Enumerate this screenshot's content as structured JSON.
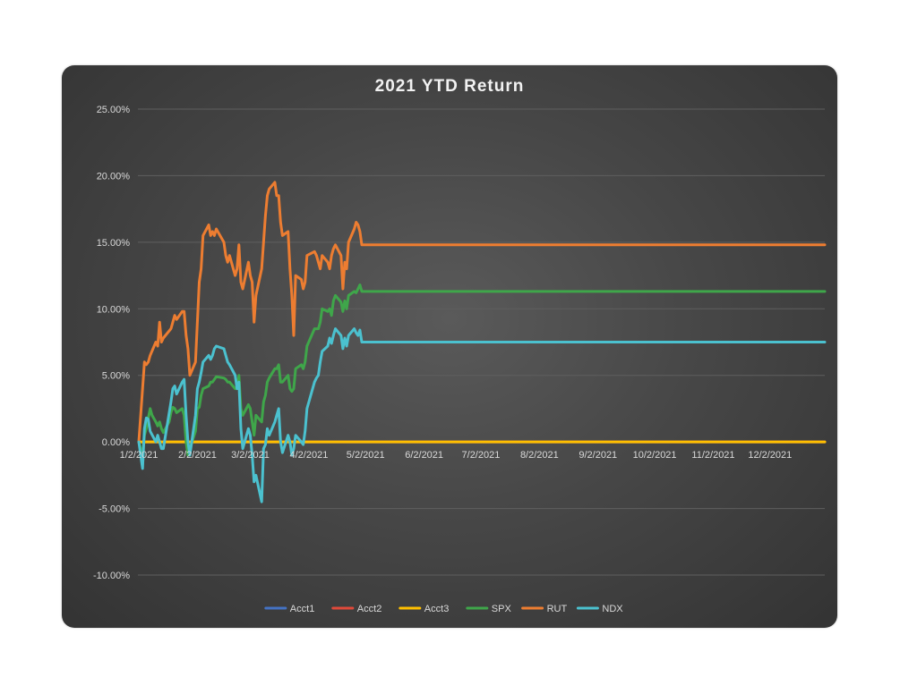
{
  "chart_data": {
    "type": "line",
    "title": "2021 YTD Return",
    "xlabel": "",
    "ylabel": "",
    "x_tick_labels": [
      "1/2/2021",
      "2/2/2021",
      "3/2/2021",
      "4/2/2021",
      "5/2/2021",
      "6/2/2021",
      "7/2/2021",
      "8/2/2021",
      "9/2/2021",
      "10/2/2021",
      "11/2/2021",
      "12/2/2021"
    ],
    "x_range": [
      "2021-01-02",
      "2021-12-31"
    ],
    "y_tick_labels": [
      "25.00%",
      "20.00%",
      "15.00%",
      "10.00%",
      "5.00%",
      "0.00%",
      "-5.00%",
      "-10.00%"
    ],
    "ylim": [
      -0.1,
      0.25
    ],
    "y_format": "percent",
    "grid": "horizontal",
    "legend_position": "bottom",
    "background": "#464646",
    "series": [
      {
        "name": "Acct1",
        "color": "#4472c4",
        "points": [
          [
            "2021-01-02",
            0
          ],
          [
            "2021-12-31",
            0
          ]
        ]
      },
      {
        "name": "Acct2",
        "color": "#e0493a",
        "points": [
          [
            "2021-01-02",
            0
          ],
          [
            "2021-12-31",
            0
          ]
        ]
      },
      {
        "name": "Acct3",
        "color": "#ffc000",
        "points": [
          [
            "2021-01-02",
            0
          ],
          [
            "2021-12-31",
            0
          ]
        ]
      },
      {
        "name": "SPX",
        "color": "#3fa64a",
        "points": [
          [
            "2021-01-02",
            0.0
          ],
          [
            "2021-01-04",
            -0.01
          ],
          [
            "2021-01-05",
            0.005
          ],
          [
            "2021-01-06",
            0.01
          ],
          [
            "2021-01-07",
            0.018
          ],
          [
            "2021-01-08",
            0.025
          ],
          [
            "2021-01-09",
            0.02
          ],
          [
            "2021-01-11",
            0.015
          ],
          [
            "2021-01-12",
            0.012
          ],
          [
            "2021-01-13",
            0.015
          ],
          [
            "2021-01-14",
            0.01
          ],
          [
            "2021-01-15",
            0.007
          ],
          [
            "2021-01-18",
            0.015
          ],
          [
            "2021-01-19",
            0.022
          ],
          [
            "2021-01-20",
            0.026
          ],
          [
            "2021-01-21",
            0.025
          ],
          [
            "2021-01-22",
            0.022
          ],
          [
            "2021-01-25",
            0.025
          ],
          [
            "2021-01-26",
            0.02
          ],
          [
            "2021-01-27",
            0.0
          ],
          [
            "2021-01-28",
            -0.01
          ],
          [
            "2021-01-29",
            -0.005
          ],
          [
            "2021-02-01",
            0.008
          ],
          [
            "2021-02-02",
            0.025
          ],
          [
            "2021-02-03",
            0.026
          ],
          [
            "2021-02-04",
            0.035
          ],
          [
            "2021-02-05",
            0.04
          ],
          [
            "2021-02-08",
            0.042
          ],
          [
            "2021-02-09",
            0.045
          ],
          [
            "2021-02-10",
            0.045
          ],
          [
            "2021-02-11",
            0.047
          ],
          [
            "2021-02-12",
            0.049
          ],
          [
            "2021-02-16",
            0.048
          ],
          [
            "2021-02-17",
            0.047
          ],
          [
            "2021-02-18",
            0.045
          ],
          [
            "2021-02-19",
            0.045
          ],
          [
            "2021-02-22",
            0.04
          ],
          [
            "2021-02-23",
            0.04
          ],
          [
            "2021-02-24",
            0.05
          ],
          [
            "2021-02-25",
            0.025
          ],
          [
            "2021-02-26",
            0.02
          ],
          [
            "2021-03-01",
            0.028
          ],
          [
            "2021-03-02",
            0.025
          ],
          [
            "2021-03-03",
            0.015
          ],
          [
            "2021-03-04",
            0.005
          ],
          [
            "2021-03-05",
            0.02
          ],
          [
            "2021-03-08",
            0.015
          ],
          [
            "2021-03-09",
            0.03
          ],
          [
            "2021-03-10",
            0.035
          ],
          [
            "2021-03-11",
            0.045
          ],
          [
            "2021-03-12",
            0.048
          ],
          [
            "2021-03-15",
            0.055
          ],
          [
            "2021-03-16",
            0.055
          ],
          [
            "2021-03-17",
            0.058
          ],
          [
            "2021-03-18",
            0.045
          ],
          [
            "2021-03-19",
            0.045
          ],
          [
            "2021-03-22",
            0.05
          ],
          [
            "2021-03-23",
            0.04
          ],
          [
            "2021-03-24",
            0.038
          ],
          [
            "2021-03-25",
            0.04
          ],
          [
            "2021-03-26",
            0.055
          ],
          [
            "2021-03-29",
            0.058
          ],
          [
            "2021-03-30",
            0.055
          ],
          [
            "2021-03-31",
            0.06
          ],
          [
            "2021-04-01",
            0.072
          ],
          [
            "2021-04-05",
            0.085
          ],
          [
            "2021-04-06",
            0.085
          ],
          [
            "2021-04-07",
            0.085
          ],
          [
            "2021-04-08",
            0.09
          ],
          [
            "2021-04-09",
            0.1
          ],
          [
            "2021-04-12",
            0.098
          ],
          [
            "2021-04-13",
            0.1
          ],
          [
            "2021-04-14",
            0.095
          ],
          [
            "2021-04-15",
            0.106
          ],
          [
            "2021-04-16",
            0.11
          ],
          [
            "2021-04-19",
            0.105
          ],
          [
            "2021-04-20",
            0.098
          ],
          [
            "2021-04-21",
            0.106
          ],
          [
            "2021-04-22",
            0.1
          ],
          [
            "2021-04-23",
            0.11
          ],
          [
            "2021-04-26",
            0.113
          ],
          [
            "2021-04-27",
            0.112
          ],
          [
            "2021-04-28",
            0.115
          ],
          [
            "2021-04-29",
            0.118
          ],
          [
            "2021-04-30",
            0.113
          ],
          [
            "2021-12-31",
            0.113
          ]
        ]
      },
      {
        "name": "RUT",
        "color": "#ed7d31",
        "points": [
          [
            "2021-01-02",
            0.0
          ],
          [
            "2021-01-04",
            0.04
          ],
          [
            "2021-01-05",
            0.06
          ],
          [
            "2021-01-06",
            0.058
          ],
          [
            "2021-01-07",
            0.06
          ],
          [
            "2021-01-08",
            0.065
          ],
          [
            "2021-01-11",
            0.075
          ],
          [
            "2021-01-12",
            0.072
          ],
          [
            "2021-01-13",
            0.09
          ],
          [
            "2021-01-14",
            0.075
          ],
          [
            "2021-01-15",
            0.078
          ],
          [
            "2021-01-19",
            0.085
          ],
          [
            "2021-01-20",
            0.09
          ],
          [
            "2021-01-21",
            0.095
          ],
          [
            "2021-01-22",
            0.092
          ],
          [
            "2021-01-25",
            0.098
          ],
          [
            "2021-01-26",
            0.098
          ],
          [
            "2021-01-27",
            0.08
          ],
          [
            "2021-01-28",
            0.07
          ],
          [
            "2021-01-29",
            0.05
          ],
          [
            "2021-02-01",
            0.06
          ],
          [
            "2021-02-02",
            0.09
          ],
          [
            "2021-02-03",
            0.12
          ],
          [
            "2021-02-04",
            0.13
          ],
          [
            "2021-02-05",
            0.155
          ],
          [
            "2021-02-08",
            0.163
          ],
          [
            "2021-02-09",
            0.155
          ],
          [
            "2021-02-10",
            0.158
          ],
          [
            "2021-02-11",
            0.155
          ],
          [
            "2021-02-12",
            0.16
          ],
          [
            "2021-02-16",
            0.15
          ],
          [
            "2021-02-17",
            0.14
          ],
          [
            "2021-02-18",
            0.135
          ],
          [
            "2021-02-19",
            0.14
          ],
          [
            "2021-02-22",
            0.125
          ],
          [
            "2021-02-23",
            0.13
          ],
          [
            "2021-02-24",
            0.148
          ],
          [
            "2021-02-25",
            0.12
          ],
          [
            "2021-02-26",
            0.115
          ],
          [
            "2021-03-01",
            0.135
          ],
          [
            "2021-03-02",
            0.125
          ],
          [
            "2021-03-03",
            0.12
          ],
          [
            "2021-03-04",
            0.09
          ],
          [
            "2021-03-05",
            0.11
          ],
          [
            "2021-03-08",
            0.13
          ],
          [
            "2021-03-09",
            0.15
          ],
          [
            "2021-03-10",
            0.17
          ],
          [
            "2021-03-11",
            0.185
          ],
          [
            "2021-03-12",
            0.19
          ],
          [
            "2021-03-15",
            0.195
          ],
          [
            "2021-03-16",
            0.185
          ],
          [
            "2021-03-17",
            0.185
          ],
          [
            "2021-03-18",
            0.165
          ],
          [
            "2021-03-19",
            0.155
          ],
          [
            "2021-03-22",
            0.158
          ],
          [
            "2021-03-23",
            0.13
          ],
          [
            "2021-03-24",
            0.11
          ],
          [
            "2021-03-25",
            0.08
          ],
          [
            "2021-03-26",
            0.125
          ],
          [
            "2021-03-29",
            0.122
          ],
          [
            "2021-03-30",
            0.115
          ],
          [
            "2021-03-31",
            0.12
          ],
          [
            "2021-04-01",
            0.14
          ],
          [
            "2021-04-05",
            0.143
          ],
          [
            "2021-04-06",
            0.14
          ],
          [
            "2021-04-07",
            0.135
          ],
          [
            "2021-04-08",
            0.13
          ],
          [
            "2021-04-09",
            0.14
          ],
          [
            "2021-04-12",
            0.135
          ],
          [
            "2021-04-13",
            0.13
          ],
          [
            "2021-04-14",
            0.14
          ],
          [
            "2021-04-15",
            0.145
          ],
          [
            "2021-04-16",
            0.148
          ],
          [
            "2021-04-19",
            0.14
          ],
          [
            "2021-04-20",
            0.115
          ],
          [
            "2021-04-21",
            0.135
          ],
          [
            "2021-04-22",
            0.13
          ],
          [
            "2021-04-23",
            0.15
          ],
          [
            "2021-04-26",
            0.16
          ],
          [
            "2021-04-27",
            0.165
          ],
          [
            "2021-04-28",
            0.163
          ],
          [
            "2021-04-29",
            0.158
          ],
          [
            "2021-04-30",
            0.148
          ],
          [
            "2021-12-31",
            0.148
          ]
        ]
      },
      {
        "name": "NDX",
        "color": "#4bc1cf",
        "points": [
          [
            "2021-01-02",
            0.0
          ],
          [
            "2021-01-04",
            -0.02
          ],
          [
            "2021-01-05",
            0.01
          ],
          [
            "2021-01-06",
            0.018
          ],
          [
            "2021-01-07",
            0.017
          ],
          [
            "2021-01-08",
            0.008
          ],
          [
            "2021-01-11",
            0.0
          ],
          [
            "2021-01-12",
            0.005
          ],
          [
            "2021-01-13",
            0.0
          ],
          [
            "2021-01-14",
            -0.005
          ],
          [
            "2021-01-15",
            -0.005
          ],
          [
            "2021-01-19",
            0.03
          ],
          [
            "2021-01-20",
            0.04
          ],
          [
            "2021-01-21",
            0.042
          ],
          [
            "2021-01-22",
            0.036
          ],
          [
            "2021-01-25",
            0.045
          ],
          [
            "2021-01-26",
            0.047
          ],
          [
            "2021-01-27",
            0.02
          ],
          [
            "2021-01-28",
            0.0
          ],
          [
            "2021-01-29",
            -0.01
          ],
          [
            "2021-02-01",
            0.02
          ],
          [
            "2021-02-02",
            0.04
          ],
          [
            "2021-02-03",
            0.045
          ],
          [
            "2021-02-04",
            0.052
          ],
          [
            "2021-02-05",
            0.06
          ],
          [
            "2021-02-08",
            0.065
          ],
          [
            "2021-02-09",
            0.062
          ],
          [
            "2021-02-10",
            0.065
          ],
          [
            "2021-02-11",
            0.07
          ],
          [
            "2021-02-12",
            0.072
          ],
          [
            "2021-02-16",
            0.07
          ],
          [
            "2021-02-17",
            0.065
          ],
          [
            "2021-02-18",
            0.06
          ],
          [
            "2021-02-19",
            0.058
          ],
          [
            "2021-02-22",
            0.05
          ],
          [
            "2021-02-23",
            0.04
          ],
          [
            "2021-02-24",
            0.045
          ],
          [
            "2021-02-25",
            0.01
          ],
          [
            "2021-02-26",
            -0.005
          ],
          [
            "2021-03-01",
            0.01
          ],
          [
            "2021-03-02",
            0.005
          ],
          [
            "2021-03-03",
            -0.01
          ],
          [
            "2021-03-04",
            -0.03
          ],
          [
            "2021-03-05",
            -0.025
          ],
          [
            "2021-03-08",
            -0.045
          ],
          [
            "2021-03-09",
            -0.005
          ],
          [
            "2021-03-10",
            -0.002
          ],
          [
            "2021-03-11",
            0.01
          ],
          [
            "2021-03-12",
            0.005
          ],
          [
            "2021-03-15",
            0.015
          ],
          [
            "2021-03-16",
            0.02
          ],
          [
            "2021-03-17",
            0.025
          ],
          [
            "2021-03-18",
            0.0
          ],
          [
            "2021-03-19",
            -0.008
          ],
          [
            "2021-03-22",
            0.005
          ],
          [
            "2021-03-23",
            0.0
          ],
          [
            "2021-03-24",
            -0.01
          ],
          [
            "2021-03-25",
            -0.005
          ],
          [
            "2021-03-26",
            0.005
          ],
          [
            "2021-03-29",
            0.0
          ],
          [
            "2021-03-30",
            -0.002
          ],
          [
            "2021-03-31",
            0.008
          ],
          [
            "2021-04-01",
            0.025
          ],
          [
            "2021-04-05",
            0.045
          ],
          [
            "2021-04-06",
            0.048
          ],
          [
            "2021-04-07",
            0.05
          ],
          [
            "2021-04-08",
            0.06
          ],
          [
            "2021-04-09",
            0.068
          ],
          [
            "2021-04-12",
            0.072
          ],
          [
            "2021-04-13",
            0.078
          ],
          [
            "2021-04-14",
            0.074
          ],
          [
            "2021-04-15",
            0.08
          ],
          [
            "2021-04-16",
            0.085
          ],
          [
            "2021-04-19",
            0.08
          ],
          [
            "2021-04-20",
            0.07
          ],
          [
            "2021-04-21",
            0.078
          ],
          [
            "2021-04-22",
            0.072
          ],
          [
            "2021-04-23",
            0.08
          ],
          [
            "2021-04-26",
            0.085
          ],
          [
            "2021-04-27",
            0.082
          ],
          [
            "2021-04-28",
            0.08
          ],
          [
            "2021-04-29",
            0.084
          ],
          [
            "2021-04-30",
            0.075
          ],
          [
            "2021-12-31",
            0.075
          ]
        ]
      }
    ]
  }
}
